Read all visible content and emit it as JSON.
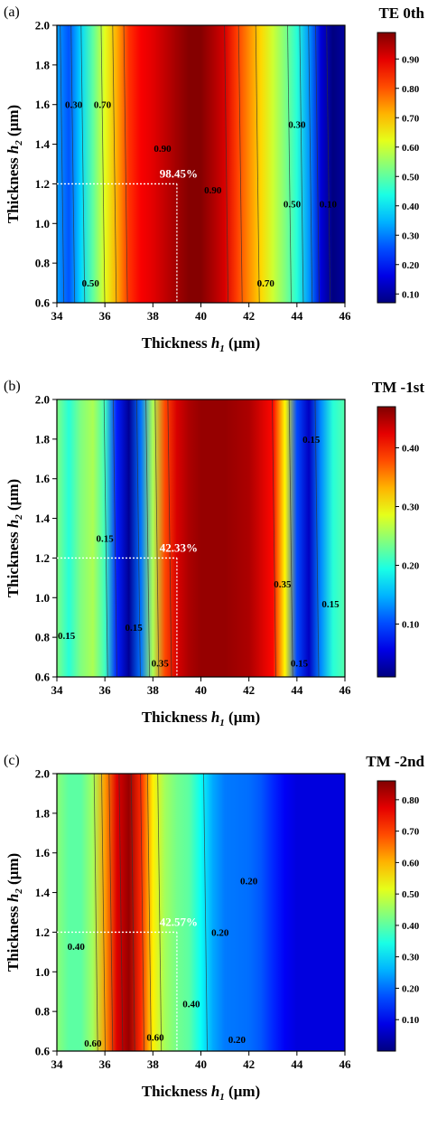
{
  "chart_data": [
    {
      "type": "heatmap",
      "panel_label": "(a)",
      "title": "TE 0th",
      "xlabel_main": "Thickness ",
      "xlabel_var": "h",
      "xlabel_sub": "1",
      "xlabel_unit": " (μm)",
      "ylabel_main": "Thickness ",
      "ylabel_var": "h",
      "ylabel_sub": "2",
      "ylabel_unit": " (μm)",
      "xlim": [
        34,
        46
      ],
      "ylim": [
        0.6,
        2.0
      ],
      "xticks": [
        "34",
        "36",
        "38",
        "40",
        "42",
        "44",
        "46"
      ],
      "yticks": [
        "0.6",
        "0.8",
        "1.0",
        "1.2",
        "1.4",
        "1.6",
        "1.8",
        "2.0"
      ],
      "colorbar_ticks": [
        "0.10",
        "0.20",
        "0.30",
        "0.40",
        "0.50",
        "0.60",
        "0.70",
        "0.80",
        "0.90"
      ],
      "colorbar_range": [
        0.07,
        0.99
      ],
      "h1_profile": [
        [
          34,
          0.33
        ],
        [
          34.5,
          0.26
        ],
        [
          35,
          0.38
        ],
        [
          35.5,
          0.5
        ],
        [
          36,
          0.62
        ],
        [
          36.5,
          0.72
        ],
        [
          37,
          0.83
        ],
        [
          37.5,
          0.88
        ],
        [
          38,
          0.9
        ],
        [
          38.5,
          0.93
        ],
        [
          39,
          0.96
        ],
        [
          39.5,
          0.985
        ],
        [
          40,
          0.985
        ],
        [
          40.5,
          0.95
        ],
        [
          41,
          0.91
        ],
        [
          41.5,
          0.82
        ],
        [
          42,
          0.75
        ],
        [
          42.5,
          0.68
        ],
        [
          43,
          0.6
        ],
        [
          43.5,
          0.53
        ],
        [
          44,
          0.45
        ],
        [
          44.5,
          0.32
        ],
        [
          45,
          0.15
        ],
        [
          45.5,
          0.07
        ],
        [
          46,
          0.1
        ]
      ],
      "marker": {
        "x": 39,
        "y": 1.2,
        "label": "98.45%"
      },
      "contour_labels": [
        {
          "text": "0.30",
          "x": 34.7,
          "y": 1.6
        },
        {
          "text": "0.70",
          "x": 35.9,
          "y": 1.6
        },
        {
          "text": "0.90",
          "x": 38.4,
          "y": 1.38
        },
        {
          "text": "0.90",
          "x": 40.5,
          "y": 1.17
        },
        {
          "text": "0.30",
          "x": 44.0,
          "y": 1.5
        },
        {
          "text": "0.50",
          "x": 43.8,
          "y": 1.1
        },
        {
          "text": "0.10",
          "x": 45.3,
          "y": 1.1
        },
        {
          "text": "0.50",
          "x": 35.4,
          "y": 0.7
        },
        {
          "text": "0.70",
          "x": 42.7,
          "y": 0.7
        }
      ]
    },
    {
      "type": "heatmap",
      "panel_label": "(b)",
      "title": "TM -1st",
      "xlabel_main": "Thickness ",
      "xlabel_var": "h",
      "xlabel_sub": "1",
      "xlabel_unit": " (μm)",
      "ylabel_main": "Thickness ",
      "ylabel_var": "h",
      "ylabel_sub": "2",
      "ylabel_unit": " (μm)",
      "xlim": [
        34,
        46
      ],
      "ylim": [
        0.6,
        2.0
      ],
      "xticks": [
        "34",
        "36",
        "38",
        "40",
        "42",
        "44",
        "46"
      ],
      "yticks": [
        "0.6",
        "0.8",
        "1.0",
        "1.2",
        "1.4",
        "1.6",
        "1.8",
        "2.0"
      ],
      "colorbar_ticks": [
        "0.10",
        "0.20",
        "0.30",
        "0.40"
      ],
      "colorbar_range": [
        0.01,
        0.47
      ],
      "h1_profile": [
        [
          34,
          0.24
        ],
        [
          34.5,
          0.2
        ],
        [
          35,
          0.24
        ],
        [
          35.5,
          0.26
        ],
        [
          36,
          0.21
        ],
        [
          36.5,
          0.08
        ],
        [
          37,
          0.02
        ],
        [
          37.5,
          0.12
        ],
        [
          38,
          0.26
        ],
        [
          38.5,
          0.38
        ],
        [
          39,
          0.43
        ],
        [
          39.5,
          0.45
        ],
        [
          40,
          0.46
        ],
        [
          41,
          0.46
        ],
        [
          42,
          0.45
        ],
        [
          43,
          0.41
        ],
        [
          43.5,
          0.3
        ],
        [
          44,
          0.1
        ],
        [
          44.5,
          0.04
        ],
        [
          45,
          0.13
        ],
        [
          45.5,
          0.2
        ],
        [
          46,
          0.22
        ]
      ],
      "marker": {
        "x": 39,
        "y": 1.2,
        "label": "42.33%"
      },
      "contour_labels": [
        {
          "text": "0.15",
          "x": 44.6,
          "y": 1.8
        },
        {
          "text": "0.15",
          "x": 36.0,
          "y": 1.3
        },
        {
          "text": "0.35",
          "x": 43.4,
          "y": 1.07
        },
        {
          "text": "0.15",
          "x": 45.4,
          "y": 0.97
        },
        {
          "text": "0.15",
          "x": 37.2,
          "y": 0.85
        },
        {
          "text": "0.15",
          "x": 34.4,
          "y": 0.81
        },
        {
          "text": "0.35",
          "x": 38.3,
          "y": 0.67
        },
        {
          "text": "0.15",
          "x": 44.1,
          "y": 0.67
        }
      ]
    },
    {
      "type": "heatmap",
      "panel_label": "(c)",
      "title": "TM -2nd",
      "xlabel_main": "Thickness ",
      "xlabel_var": "h",
      "xlabel_sub": "1",
      "xlabel_unit": " (μm)",
      "ylabel_main": "Thickness ",
      "ylabel_var": "h",
      "ylabel_sub": "2",
      "ylabel_unit": " (μm)",
      "xlim": [
        34,
        46
      ],
      "ylim": [
        0.6,
        2.0
      ],
      "xticks": [
        "34",
        "36",
        "38",
        "40",
        "42",
        "44",
        "46"
      ],
      "yticks": [
        "0.6",
        "0.8",
        "1.0",
        "1.2",
        "1.4",
        "1.6",
        "1.8",
        "2.0"
      ],
      "colorbar_ticks": [
        "0.10",
        "0.20",
        "0.30",
        "0.40",
        "0.50",
        "0.60",
        "0.70",
        "0.80"
      ],
      "colorbar_range": [
        0.0,
        0.86
      ],
      "h1_profile": [
        [
          34,
          0.44
        ],
        [
          34.5,
          0.4
        ],
        [
          35,
          0.4
        ],
        [
          35.5,
          0.46
        ],
        [
          36,
          0.62
        ],
        [
          36.5,
          0.78
        ],
        [
          37,
          0.84
        ],
        [
          37.5,
          0.72
        ],
        [
          38,
          0.55
        ],
        [
          38.5,
          0.46
        ],
        [
          39,
          0.42
        ],
        [
          39.5,
          0.4
        ],
        [
          40,
          0.33
        ],
        [
          40.5,
          0.25
        ],
        [
          41,
          0.21
        ],
        [
          42,
          0.2
        ],
        [
          42.5,
          0.18
        ],
        [
          43,
          0.14
        ],
        [
          43.5,
          0.1
        ],
        [
          44,
          0.08
        ],
        [
          45,
          0.08
        ],
        [
          46,
          0.08
        ]
      ],
      "marker": {
        "x": 39,
        "y": 1.2,
        "label": "42.57%"
      },
      "contour_labels": [
        {
          "text": "0.20",
          "x": 42.0,
          "y": 1.46
        },
        {
          "text": "0.20",
          "x": 40.8,
          "y": 1.2
        },
        {
          "text": "0.40",
          "x": 34.8,
          "y": 1.13
        },
        {
          "text": "0.40",
          "x": 39.6,
          "y": 0.84
        },
        {
          "text": "0.60",
          "x": 35.5,
          "y": 0.64
        },
        {
          "text": "0.60",
          "x": 38.1,
          "y": 0.67
        },
        {
          "text": "0.20",
          "x": 41.5,
          "y": 0.66
        }
      ]
    }
  ]
}
